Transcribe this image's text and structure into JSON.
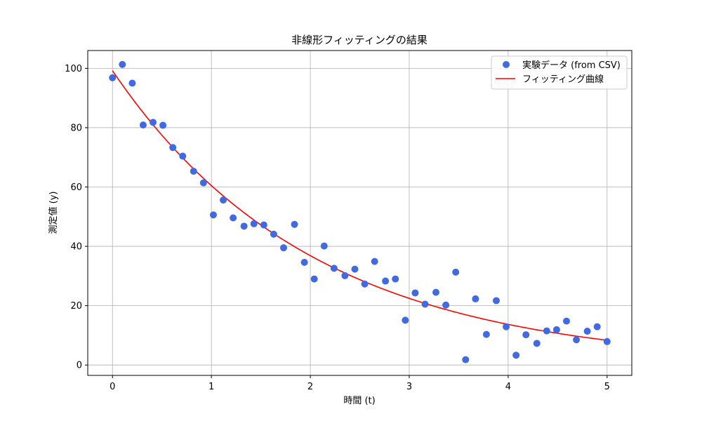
{
  "chart_data": {
    "type": "scatter",
    "title": "非線形フィッティングの結果",
    "xlabel": "時間 (t)",
    "ylabel": "測定値 (y)",
    "xlim": [
      -0.25,
      5.25
    ],
    "ylim": [
      -3.5,
      106
    ],
    "xticks": [
      0,
      1,
      2,
      3,
      4,
      5
    ],
    "yticks": [
      0,
      20,
      40,
      60,
      80,
      100
    ],
    "grid": true,
    "legend_position": "top-right",
    "colors": {
      "scatter": "#4169e1",
      "fit": "#ff0000",
      "grid": "#b0b0b0"
    },
    "series": [
      {
        "name": "実験データ (from CSV)",
        "kind": "scatter",
        "x": [
          0.0,
          0.1,
          0.2,
          0.31,
          0.41,
          0.51,
          0.61,
          0.71,
          0.82,
          0.92,
          1.02,
          1.12,
          1.22,
          1.33,
          1.43,
          1.53,
          1.63,
          1.73,
          1.84,
          1.94,
          2.04,
          2.14,
          2.24,
          2.35,
          2.45,
          2.55,
          2.65,
          2.76,
          2.86,
          2.96,
          3.06,
          3.16,
          3.27,
          3.37,
          3.47,
          3.57,
          3.67,
          3.78,
          3.88,
          3.98,
          4.08,
          4.18,
          4.29,
          4.39,
          4.49,
          4.59,
          4.69,
          4.8,
          4.9,
          5.0
        ],
        "y": [
          96.8,
          101.3,
          95.0,
          80.9,
          81.8,
          80.8,
          73.3,
          70.4,
          65.3,
          61.4,
          50.6,
          55.6,
          49.6,
          46.8,
          47.6,
          47.2,
          44.1,
          39.5,
          47.4,
          34.6,
          29.0,
          40.1,
          32.6,
          30.1,
          32.3,
          27.3,
          34.9,
          28.3,
          29.0,
          15.1,
          24.3,
          20.5,
          24.5,
          20.2,
          31.3,
          1.8,
          22.3,
          10.3,
          21.7,
          12.9,
          3.3,
          10.2,
          7.3,
          11.5,
          11.9,
          14.8,
          8.5,
          11.4,
          12.9,
          7.9
        ]
      },
      {
        "name": "フィッティング曲線",
        "kind": "line",
        "model": {
          "a": 99.2,
          "b": 0.495,
          "c": 0.0
        }
      }
    ]
  }
}
